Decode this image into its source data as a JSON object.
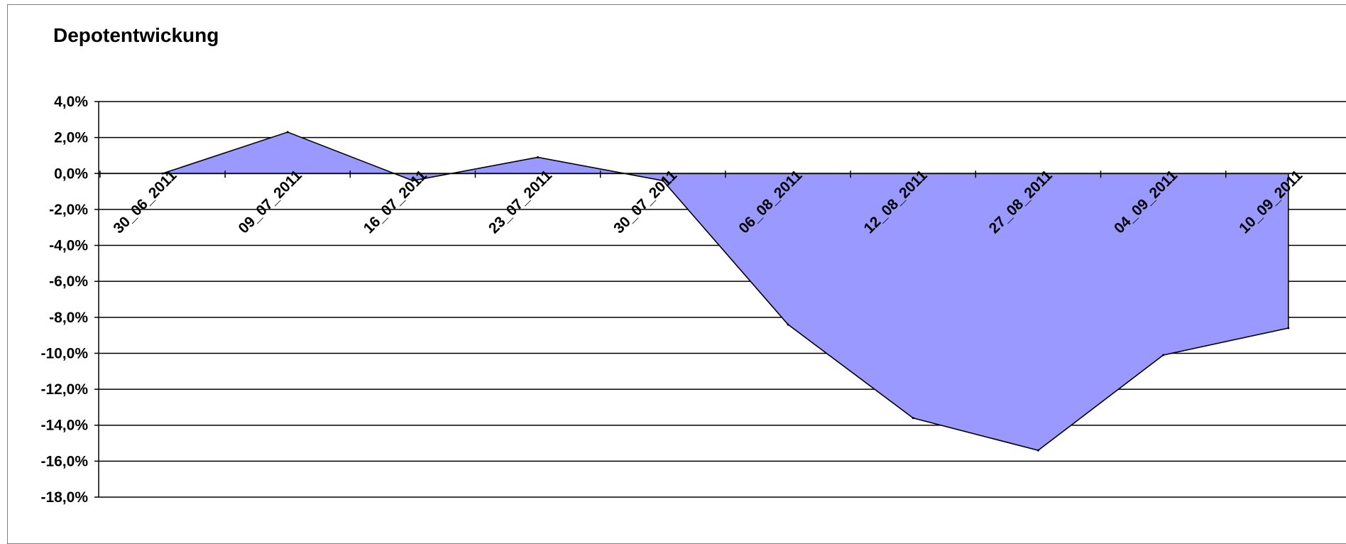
{
  "chart_data": {
    "type": "area",
    "title": "Depotentwickung",
    "xlabel": "",
    "ylabel": "",
    "categories": [
      "30_06_2011",
      "09_07_2011",
      "16_07_2011",
      "23_07_2011",
      "30_07_2011",
      "06_08_2011",
      "12_08_2011",
      "27_08_2011",
      "04_09_2011",
      "10_09_2011"
    ],
    "series": [
      {
        "x": [
          0,
          1,
          2,
          3,
          4,
          5,
          6,
          7,
          8,
          9
        ],
        "values": [
          0.0,
          2.3,
          -0.4,
          0.9,
          -0.4,
          -8.4,
          -13.6,
          -15.4,
          -10.1,
          -8.6
        ]
      }
    ],
    "ylim": [
      -18,
      4
    ],
    "ytick_values": [
      4,
      2,
      0,
      -2,
      -4,
      -6,
      -8,
      -10,
      -12,
      -14,
      -16,
      -18
    ],
    "ytick_labels": [
      "4,0%",
      "2,0%",
      "0,0%",
      "-2,0%",
      "-4,0%",
      "-6,0%",
      "-8,0%",
      "-10,0%",
      "-12,0%",
      "-14,0%",
      "-16,0%",
      "-18,0%"
    ],
    "grid": true,
    "legend": "none",
    "colors": {
      "fill": "#9999ff",
      "line": "#000000",
      "grid": "#000000"
    }
  }
}
